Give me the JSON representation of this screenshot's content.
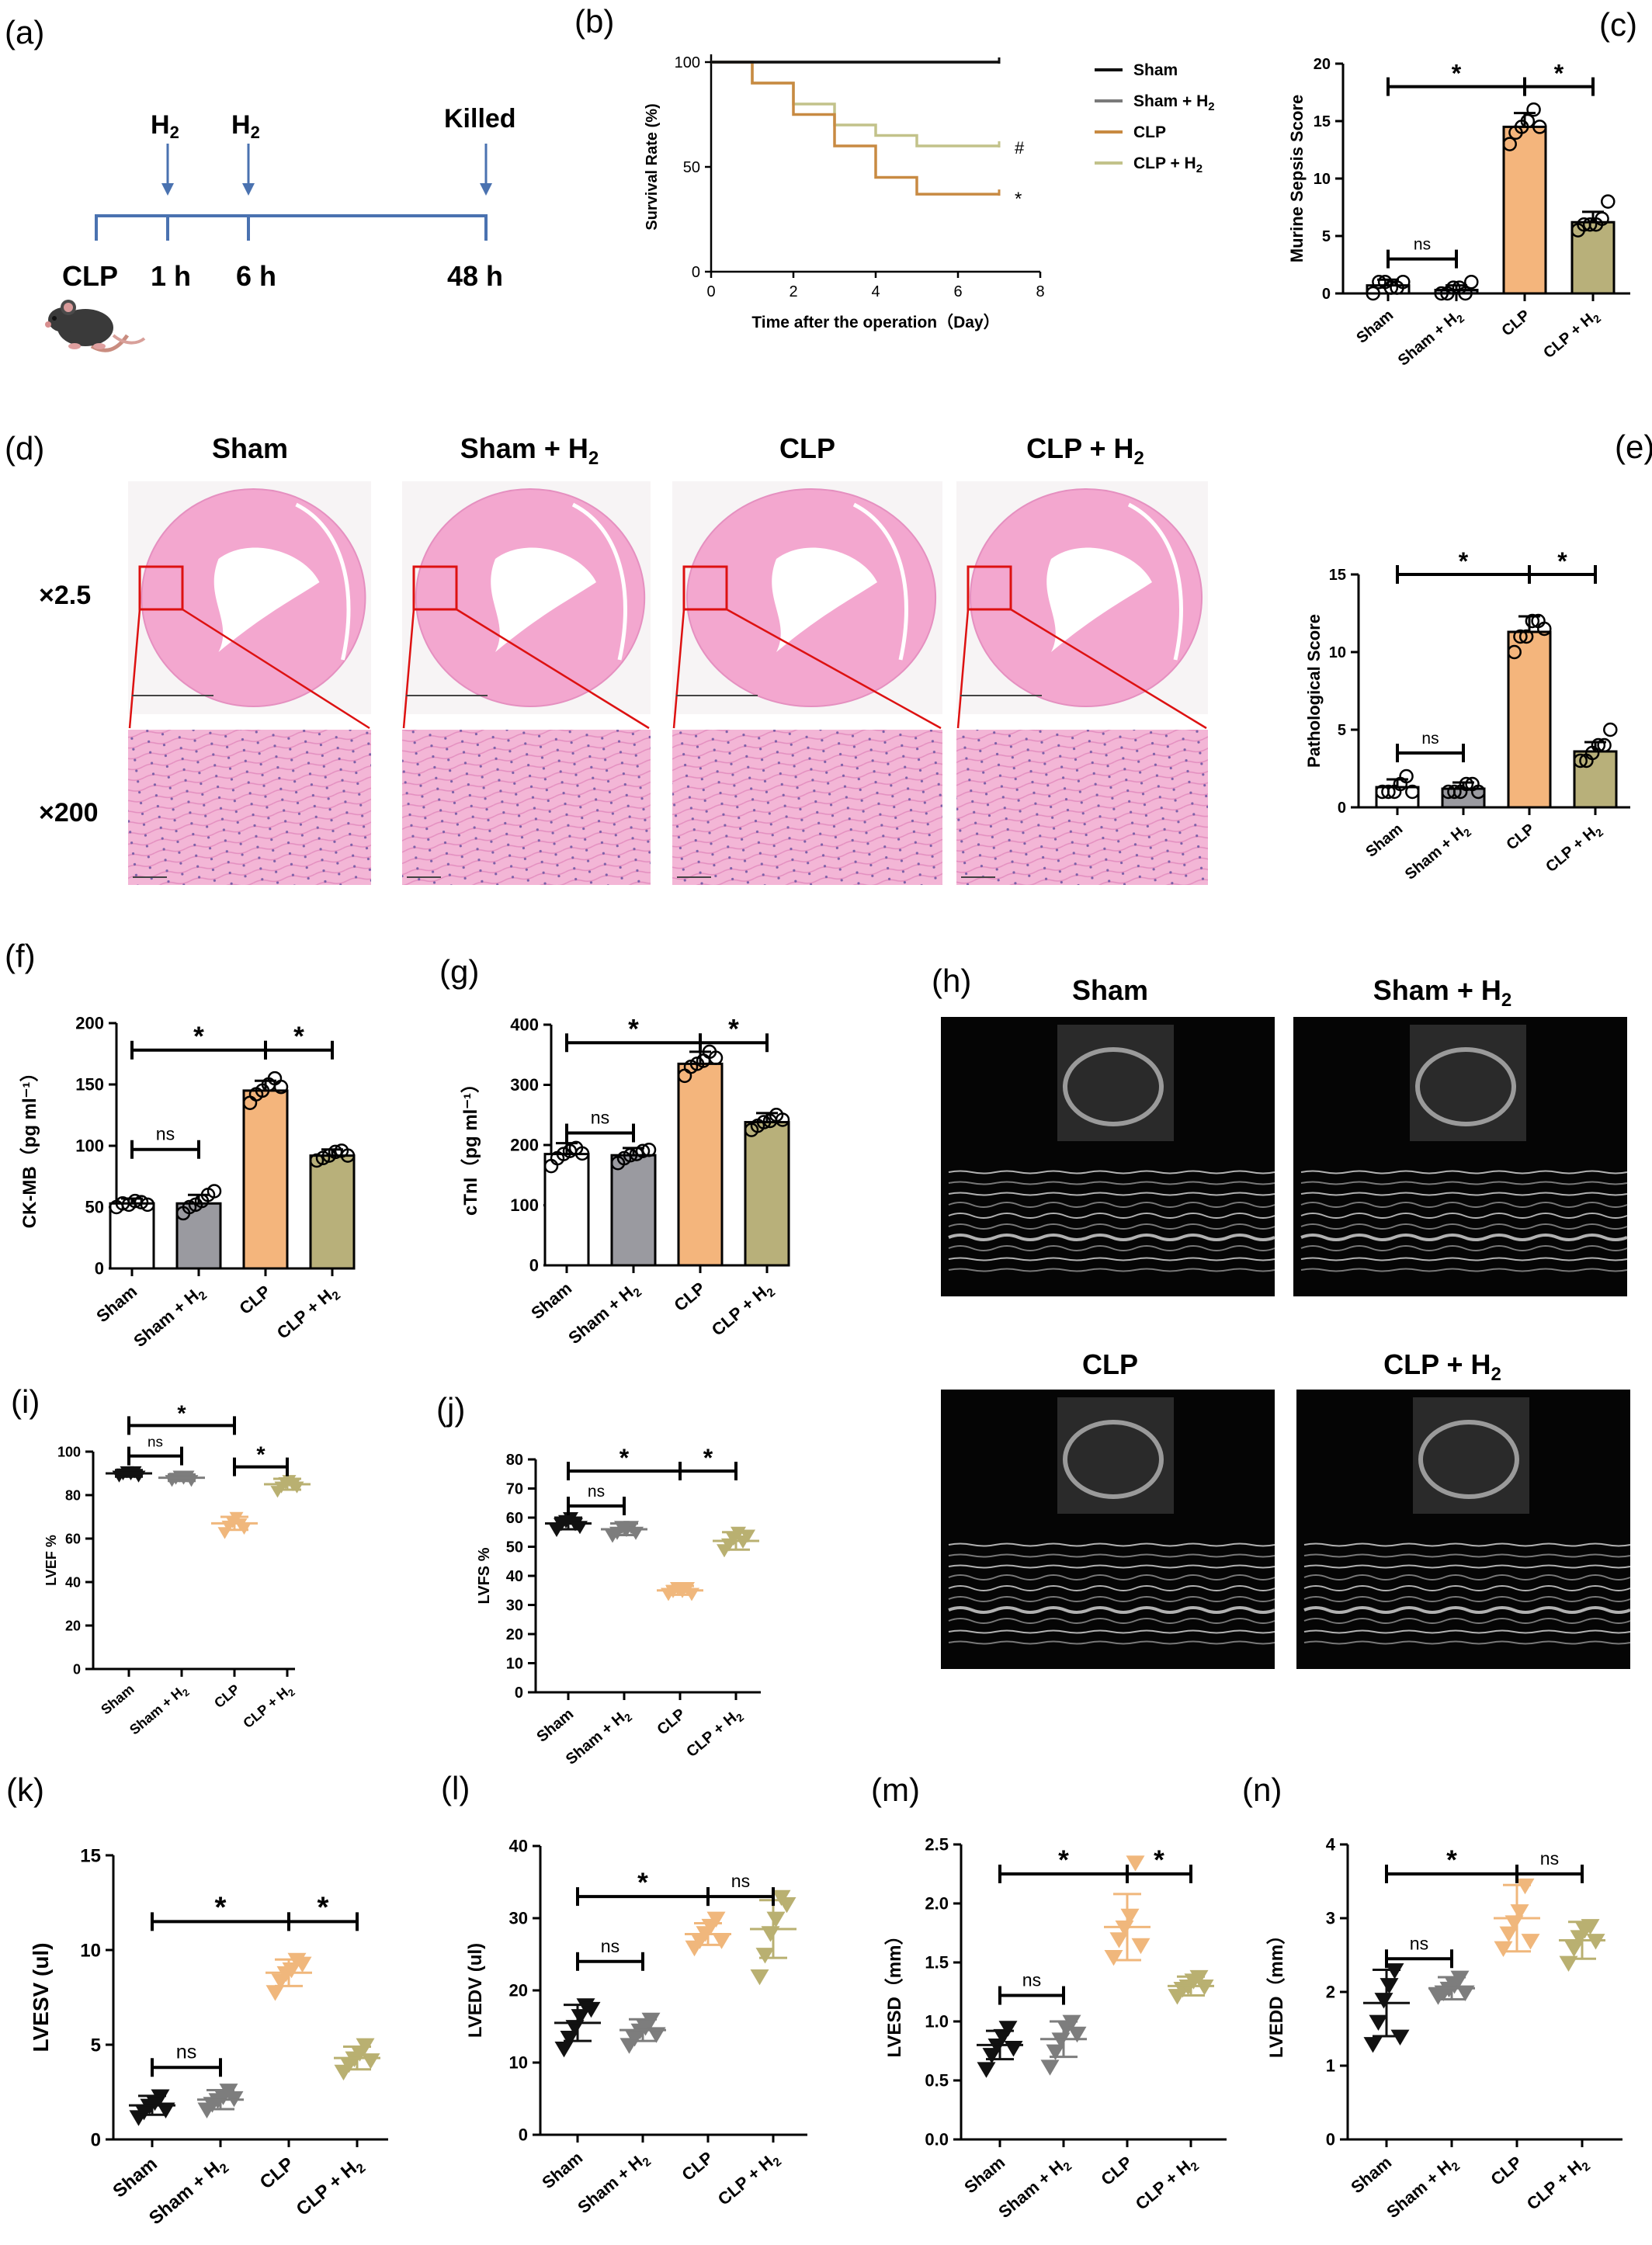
{
  "colors": {
    "sham": "#ffffff",
    "sham_h2": "#9a9aa0",
    "clp": "#f4b57c",
    "clp_h2": "#b8b07a",
    "tri_sham": "#111111",
    "tri_sham_h2": "#7d7d7d",
    "tri_clp": "#f0b77c",
    "tri_clp_h2": "#b9b071",
    "km_sham": "#111111",
    "km_sham_h2": "#7a7a7a",
    "km_clp": "#c88a42",
    "km_clp_h2": "#c2c28a",
    "timeline": "#4a72b0",
    "he_pink": "#f2a9cf",
    "zoom_red": "#dd1111"
  },
  "panel_a": {
    "letter": "(a)",
    "h2_first": "H",
    "h2_second": "H",
    "sub": "2",
    "killed": "Killed",
    "clp": "CLP",
    "t1": "1 h",
    "t2": "6 h",
    "t3": "48 h",
    "mouse_icon": "mouse-icon"
  },
  "panel_d": {
    "letter": "(d)",
    "titles": [
      "Sham",
      "Sham + H",
      "CLP",
      "CLP + H"
    ],
    "title_subs": [
      "",
      "2",
      "",
      "2"
    ],
    "mag_low": "×2.5",
    "mag_high": "×200"
  },
  "panel_h": {
    "letter": "(h)",
    "titles": [
      "Sham",
      "Sham + H",
      "CLP",
      "CLP + H"
    ],
    "title_subs": [
      "",
      "2",
      "",
      "2"
    ]
  },
  "chart_data": [
    {
      "id": "b",
      "letter": "(b)",
      "type": "line",
      "ylabel": "Survival Rate (%)",
      "xlabel": "Time after the operation（Day）",
      "xlim": [
        0,
        8
      ],
      "ylim": [
        0,
        100
      ],
      "xticks": [
        0,
        2,
        4,
        6,
        8
      ],
      "yticks": [
        0,
        50,
        100
      ],
      "legend": [
        "Sham",
        "Sham + H",
        "CLP",
        "CLP + H"
      ],
      "legend_subs": [
        "",
        "2",
        "",
        "2"
      ],
      "markers": [
        "#",
        "*"
      ],
      "series": [
        {
          "name": "Sham",
          "steps": [
            [
              0,
              100
            ],
            [
              7,
              100
            ]
          ]
        },
        {
          "name": "Sham + H2",
          "steps": [
            [
              0,
              100
            ],
            [
              7,
              100
            ]
          ]
        },
        {
          "name": "CLP",
          "steps": [
            [
              0,
              100
            ],
            [
              1,
              90
            ],
            [
              2,
              75
            ],
            [
              3,
              60
            ],
            [
              4,
              45
            ],
            [
              5,
              37
            ],
            [
              7,
              37
            ]
          ]
        },
        {
          "name": "CLP + H2",
          "steps": [
            [
              0,
              100
            ],
            [
              1,
              90
            ],
            [
              2,
              80
            ],
            [
              3,
              70
            ],
            [
              4,
              65
            ],
            [
              5,
              60
            ],
            [
              7,
              60
            ]
          ]
        }
      ]
    },
    {
      "id": "c",
      "letter": "(c)",
      "type": "bar",
      "ylabel": "Murine Sepsis Score",
      "ylim": [
        0,
        20
      ],
      "yticks": [
        0,
        5,
        10,
        15,
        20
      ],
      "categories": [
        "Sham",
        "Sham + H",
        "CLP",
        "CLP + H"
      ],
      "cat_subs": [
        "",
        "2",
        "",
        "2"
      ],
      "values": [
        0.7,
        0.3,
        14.5,
        6.2
      ],
      "errors": [
        0.5,
        0.4,
        1.2,
        0.9
      ],
      "points": [
        [
          0,
          1,
          1,
          0.5,
          0.5,
          1
        ],
        [
          0,
          0,
          0.5,
          0.5,
          0,
          1
        ],
        [
          13,
          14,
          14.5,
          15,
          16,
          14.5
        ],
        [
          5.5,
          6,
          6,
          6,
          6.5,
          8
        ]
      ],
      "brackets": [
        {
          "from": 0,
          "to": 2,
          "y": 18,
          "label": "*"
        },
        {
          "from": 2,
          "to": 3,
          "y": 18,
          "label": "*"
        },
        {
          "from": 0,
          "to": 1,
          "y": 3,
          "label": "ns"
        }
      ]
    },
    {
      "id": "e",
      "letter": "(e)",
      "type": "bar",
      "ylabel": "Pathological Score",
      "ylim": [
        0,
        15
      ],
      "yticks": [
        0,
        5,
        10,
        15
      ],
      "categories": [
        "Sham",
        "Sham + H",
        "CLP",
        "CLP + H"
      ],
      "cat_subs": [
        "",
        "2",
        "",
        "2"
      ],
      "values": [
        1.3,
        1.2,
        11.3,
        3.6
      ],
      "errors": [
        0.5,
        0.4,
        1.0,
        0.6
      ],
      "points": [
        [
          1,
          1,
          1,
          1.5,
          2,
          1
        ],
        [
          1,
          1,
          1,
          1.5,
          1.5,
          1
        ],
        [
          10,
          11,
          11,
          12,
          12,
          11.5
        ],
        [
          3,
          3,
          3.5,
          4,
          4,
          5
        ]
      ],
      "brackets": [
        {
          "from": 0,
          "to": 2,
          "y": 15,
          "label": "*"
        },
        {
          "from": 2,
          "to": 3,
          "y": 15,
          "label": "*"
        },
        {
          "from": 0,
          "to": 1,
          "y": 3.5,
          "label": "ns"
        }
      ]
    },
    {
      "id": "f",
      "letter": "(f)",
      "type": "bar",
      "ylabel": "CK-MB（pg ml⁻¹）",
      "ylim": [
        0,
        200
      ],
      "yticks": [
        0,
        50,
        100,
        150,
        200
      ],
      "categories": [
        "Sham",
        "Sham + H",
        "CLP",
        "CLP + H"
      ],
      "cat_subs": [
        "",
        "2",
        "",
        "2"
      ],
      "values": [
        53,
        53,
        145,
        92
      ],
      "errors": [
        4,
        7,
        8,
        5
      ],
      "points": [
        [
          50,
          53,
          52,
          55,
          54,
          52
        ],
        [
          45,
          50,
          52,
          55,
          60,
          63
        ],
        [
          135,
          142,
          145,
          150,
          155,
          148
        ],
        [
          88,
          90,
          92,
          95,
          96,
          92
        ]
      ],
      "brackets": [
        {
          "from": 0,
          "to": 2,
          "y": 178,
          "label": "*"
        },
        {
          "from": 2,
          "to": 3,
          "y": 178,
          "label": "*"
        },
        {
          "from": 0,
          "to": 1,
          "y": 97,
          "label": "ns"
        }
      ]
    },
    {
      "id": "g",
      "letter": "(g)",
      "type": "bar",
      "ylabel": "cTnI（pg ml⁻¹）",
      "ylim": [
        0,
        400
      ],
      "yticks": [
        0,
        100,
        200,
        300,
        400
      ],
      "categories": [
        "Sham",
        "Sham + H",
        "CLP",
        "CLP + H"
      ],
      "cat_subs": [
        "",
        "2",
        "",
        "2"
      ],
      "values": [
        185,
        183,
        335,
        238
      ],
      "errors": [
        18,
        12,
        20,
        15
      ],
      "points": [
        [
          165,
          178,
          185,
          190,
          195,
          186
        ],
        [
          170,
          178,
          183,
          185,
          190,
          192
        ],
        [
          315,
          330,
          335,
          340,
          355,
          345
        ],
        [
          225,
          232,
          238,
          240,
          250,
          242
        ]
      ],
      "brackets": [
        {
          "from": 0,
          "to": 2,
          "y": 370,
          "label": "*"
        },
        {
          "from": 2,
          "to": 3,
          "y": 370,
          "label": "*"
        },
        {
          "from": 0,
          "to": 1,
          "y": 220,
          "label": "ns"
        }
      ]
    },
    {
      "id": "i",
      "letter": "(i)",
      "type": "scatter",
      "ylabel": "LVEF %",
      "ylim": [
        0,
        100
      ],
      "yticks": [
        0,
        20,
        40,
        60,
        80,
        100
      ],
      "categories": [
        "Sham",
        "Sham + H",
        "CLP",
        "CLP + H"
      ],
      "cat_subs": [
        "",
        "2",
        "",
        "2"
      ],
      "means": [
        90,
        88,
        67,
        85
      ],
      "errors": [
        1.5,
        1.5,
        3,
        2.5
      ],
      "points": [
        [
          89,
          90,
          91,
          90,
          91,
          89
        ],
        [
          87,
          88,
          89,
          88,
          89,
          87
        ],
        [
          63,
          66,
          68,
          70,
          67,
          65
        ],
        [
          82,
          84,
          86,
          87,
          85,
          84
        ]
      ],
      "brackets": [
        {
          "from": 0,
          "to": 2,
          "y": 112,
          "label": "*"
        },
        {
          "from": 0,
          "to": 1,
          "y": 98,
          "label": "ns"
        },
        {
          "from": 2,
          "to": 3,
          "y": 93,
          "label": "*"
        }
      ]
    },
    {
      "id": "j",
      "letter": "(j)",
      "type": "scatter",
      "ylabel": "LVFS %",
      "ylim": [
        0,
        80
      ],
      "yticks": [
        0,
        10,
        20,
        30,
        40,
        50,
        60,
        70,
        80
      ],
      "categories": [
        "Sham",
        "Sham + H",
        "CLP",
        "CLP + H"
      ],
      "cat_subs": [
        "",
        "2",
        "",
        "2"
      ],
      "means": [
        58,
        56,
        35,
        52
      ],
      "errors": [
        2,
        2,
        1.5,
        3
      ],
      "points": [
        [
          56,
          58,
          59,
          60,
          58,
          57
        ],
        [
          54,
          55,
          57,
          56,
          57,
          55
        ],
        [
          34,
          35,
          36,
          35,
          36,
          34
        ],
        [
          49,
          51,
          53,
          55,
          52,
          54
        ]
      ],
      "brackets": [
        {
          "from": 0,
          "to": 2,
          "y": 76,
          "label": "*"
        },
        {
          "from": 2,
          "to": 3,
          "y": 76,
          "label": "*"
        },
        {
          "from": 0,
          "to": 1,
          "y": 64,
          "label": "ns"
        }
      ]
    },
    {
      "id": "k",
      "letter": "(k)",
      "type": "scatter",
      "ylabel": "LVESV (ul)",
      "ylim": [
        0,
        15
      ],
      "yticks": [
        0,
        5,
        10,
        15
      ],
      "categories": [
        "Sham",
        "Sham + H",
        "CLP",
        "CLP + H"
      ],
      "cat_subs": [
        "",
        "2",
        "",
        "2"
      ],
      "means": [
        1.8,
        2.1,
        8.8,
        4.3
      ],
      "errors": [
        0.5,
        0.5,
        0.7,
        0.6
      ],
      "points": [
        [
          1.2,
          1.5,
          1.8,
          2.0,
          2.3,
          1.6
        ],
        [
          1.6,
          1.9,
          2.1,
          2.3,
          2.6,
          2.2
        ],
        [
          7.8,
          8.4,
          8.8,
          9.0,
          9.5,
          9.3
        ],
        [
          3.6,
          4.0,
          4.3,
          4.6,
          5.0,
          4.2
        ]
      ],
      "brackets": [
        {
          "from": 0,
          "to": 2,
          "y": 11.5,
          "label": "*"
        },
        {
          "from": 2,
          "to": 3,
          "y": 11.5,
          "label": "*"
        },
        {
          "from": 0,
          "to": 1,
          "y": 3.8,
          "label": "ns"
        }
      ]
    },
    {
      "id": "l",
      "letter": "(l)",
      "type": "scatter",
      "ylabel": "LVEDV (ul)",
      "ylim": [
        0,
        40
      ],
      "yticks": [
        0,
        10,
        20,
        30,
        40
      ],
      "categories": [
        "Sham",
        "Sham + H",
        "CLP",
        "CLP + H"
      ],
      "cat_subs": [
        "",
        "2",
        "",
        "2"
      ],
      "means": [
        15.5,
        14.5,
        27.8,
        28.5
      ],
      "errors": [
        2.5,
        1.5,
        1.5,
        4
      ],
      "points": [
        [
          12,
          13.5,
          15,
          16.5,
          18,
          17.5
        ],
        [
          12.5,
          13.5,
          14.5,
          15,
          16,
          14
        ],
        [
          26,
          27,
          28,
          29,
          30,
          27
        ],
        [
          22,
          25,
          28,
          30,
          33,
          32
        ]
      ],
      "brackets": [
        {
          "from": 0,
          "to": 2,
          "y": 33,
          "label": "*"
        },
        {
          "from": 2,
          "to": 3,
          "y": 33,
          "label": "ns"
        },
        {
          "from": 0,
          "to": 1,
          "y": 24,
          "label": "ns"
        }
      ]
    },
    {
      "id": "m",
      "letter": "(m)",
      "type": "scatter",
      "ylabel": "LVESD（mm）",
      "ylim": [
        0,
        2.5
      ],
      "yticks": [
        0.0,
        0.5,
        1.0,
        1.5,
        2.0,
        2.5
      ],
      "tick_decimals": 1,
      "categories": [
        "Sham",
        "Sham + H",
        "CLP",
        "CLP + H"
      ],
      "cat_subs": [
        "",
        "2",
        "",
        "2"
      ],
      "means": [
        0.8,
        0.85,
        1.8,
        1.3
      ],
      "errors": [
        0.12,
        0.15,
        0.28,
        0.08
      ],
      "points": [
        [
          0.6,
          0.72,
          0.8,
          0.88,
          0.95,
          0.78
        ],
        [
          0.62,
          0.75,
          0.85,
          0.95,
          1.0,
          0.9
        ],
        [
          1.55,
          1.7,
          1.8,
          1.9,
          2.35,
          1.65
        ],
        [
          1.22,
          1.28,
          1.3,
          1.35,
          1.38,
          1.3
        ]
      ],
      "brackets": [
        {
          "from": 0,
          "to": 2,
          "y": 2.25,
          "label": "*"
        },
        {
          "from": 2,
          "to": 3,
          "y": 2.25,
          "label": "*"
        },
        {
          "from": 0,
          "to": 1,
          "y": 1.22,
          "label": "ns"
        }
      ]
    },
    {
      "id": "n",
      "letter": "(n)",
      "type": "scatter",
      "ylabel": "LVEDD（mm）",
      "ylim": [
        0,
        4
      ],
      "yticks": [
        0,
        1,
        2,
        3,
        4
      ],
      "categories": [
        "Sham",
        "Sham + H",
        "CLP",
        "CLP + H"
      ],
      "cat_subs": [
        "",
        "2",
        "",
        "2"
      ],
      "means": [
        1.85,
        2.05,
        3.0,
        2.7
      ],
      "errors": [
        0.45,
        0.15,
        0.45,
        0.25
      ],
      "points": [
        [
          1.3,
          1.6,
          1.9,
          2.1,
          2.3,
          1.4
        ],
        [
          1.95,
          2.0,
          2.05,
          2.1,
          2.2,
          2.0
        ],
        [
          2.6,
          2.8,
          2.95,
          3.1,
          3.45,
          2.7
        ],
        [
          2.4,
          2.6,
          2.75,
          2.85,
          2.9,
          2.7
        ]
      ],
      "brackets": [
        {
          "from": 0,
          "to": 2,
          "y": 3.6,
          "label": "*"
        },
        {
          "from": 2,
          "to": 3,
          "y": 3.6,
          "label": "ns"
        },
        {
          "from": 0,
          "to": 1,
          "y": 2.45,
          "label": "ns"
        }
      ]
    }
  ]
}
